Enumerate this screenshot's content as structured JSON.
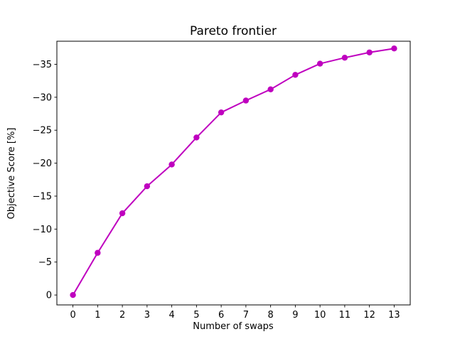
{
  "chart_data": {
    "type": "line",
    "title": "Pareto frontier",
    "xlabel": "Number of swaps",
    "ylabel": "Objective Score [%]",
    "x": [
      0,
      1,
      2,
      3,
      4,
      5,
      6,
      7,
      8,
      9,
      10,
      11,
      12,
      13
    ],
    "y": [
      0,
      -6.4,
      -12.4,
      -16.5,
      -19.8,
      -23.9,
      -27.7,
      -29.5,
      -31.2,
      -33.4,
      -35.1,
      -36.0,
      -36.8,
      -37.4
    ],
    "line_color": "#bf00bf",
    "marker": "circle",
    "marker_color": "#bf00bf",
    "x_ticks": [
      0,
      1,
      2,
      3,
      4,
      5,
      6,
      7,
      8,
      9,
      10,
      11,
      12,
      13
    ],
    "x_tick_labels": [
      "0",
      "1",
      "2",
      "3",
      "4",
      "5",
      "6",
      "7",
      "8",
      "9",
      "10",
      "11",
      "12",
      "13"
    ],
    "y_ticks": [
      0,
      -5,
      -10,
      -15,
      -20,
      -25,
      -30,
      -35
    ],
    "y_tick_labels": [
      "0",
      "−5",
      "−10",
      "−15",
      "−20",
      "−25",
      "−30",
      "−35"
    ],
    "xlim": [
      -0.65,
      13.65
    ],
    "ylim": [
      1.5,
      -38.5
    ],
    "y_axis_inverted": true,
    "grid": false,
    "legend": "none",
    "background_color": "#ffffff",
    "axes_frame_color": "#000000"
  }
}
